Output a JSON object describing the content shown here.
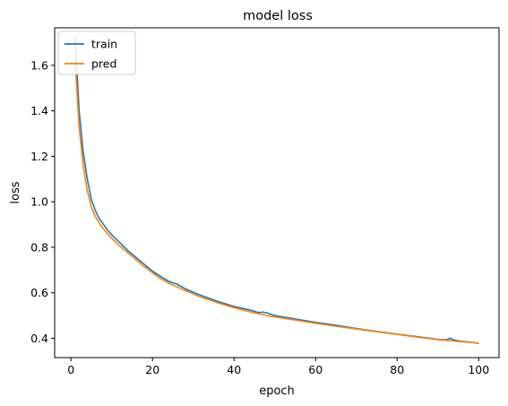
{
  "chart_data": {
    "type": "line",
    "title": "model loss",
    "xlabel": "epoch",
    "ylabel": "loss",
    "xlim": [
      -4,
      105
    ],
    "ylim": [
      0.315,
      1.765
    ],
    "xticks": [
      0,
      20,
      40,
      60,
      80,
      100
    ],
    "yticks": [
      0.4,
      0.6,
      0.8,
      1.0,
      1.2,
      1.4,
      1.6
    ],
    "ytick_labels": [
      "0.4",
      "0.6",
      "0.8",
      "1.0",
      "1.2",
      "1.4",
      "1.6"
    ],
    "grid": false,
    "legend": {
      "position": "upper left"
    },
    "series": [
      {
        "name": "train",
        "color": "#1f77b4",
        "points": [
          [
            1,
            1.73
          ],
          [
            2,
            1.4
          ],
          [
            3,
            1.22
          ],
          [
            4,
            1.1
          ],
          [
            5,
            1.01
          ],
          [
            6,
            0.96
          ],
          [
            7,
            0.925
          ],
          [
            8,
            0.9
          ],
          [
            9,
            0.875
          ],
          [
            10,
            0.855
          ],
          [
            12,
            0.82
          ],
          [
            14,
            0.785
          ],
          [
            16,
            0.755
          ],
          [
            18,
            0.725
          ],
          [
            20,
            0.695
          ],
          [
            22,
            0.672
          ],
          [
            24,
            0.65
          ],
          [
            26,
            0.638
          ],
          [
            28,
            0.618
          ],
          [
            30,
            0.602
          ],
          [
            32,
            0.588
          ],
          [
            34,
            0.575
          ],
          [
            36,
            0.562
          ],
          [
            38,
            0.551
          ],
          [
            40,
            0.54
          ],
          [
            42,
            0.532
          ],
          [
            44,
            0.524
          ],
          [
            46,
            0.513
          ],
          [
            47,
            0.515
          ],
          [
            48,
            0.512
          ],
          [
            50,
            0.5
          ],
          [
            55,
            0.485
          ],
          [
            60,
            0.47
          ],
          [
            65,
            0.457
          ],
          [
            70,
            0.443
          ],
          [
            75,
            0.43
          ],
          [
            80,
            0.418
          ],
          [
            85,
            0.407
          ],
          [
            90,
            0.395
          ],
          [
            92,
            0.393
          ],
          [
            93,
            0.4
          ],
          [
            94,
            0.392
          ],
          [
            96,
            0.386
          ],
          [
            98,
            0.383
          ],
          [
            100,
            0.377
          ]
        ]
      },
      {
        "name": "pred",
        "color": "#ff7f0e",
        "points": [
          [
            1,
            1.63
          ],
          [
            2,
            1.33
          ],
          [
            3,
            1.16
          ],
          [
            4,
            1.05
          ],
          [
            5,
            0.975
          ],
          [
            6,
            0.935
          ],
          [
            7,
            0.905
          ],
          [
            8,
            0.88
          ],
          [
            9,
            0.86
          ],
          [
            10,
            0.84
          ],
          [
            12,
            0.805
          ],
          [
            14,
            0.775
          ],
          [
            16,
            0.745
          ],
          [
            18,
            0.715
          ],
          [
            20,
            0.688
          ],
          [
            22,
            0.662
          ],
          [
            24,
            0.642
          ],
          [
            26,
            0.626
          ],
          [
            28,
            0.61
          ],
          [
            30,
            0.595
          ],
          [
            32,
            0.58
          ],
          [
            34,
            0.568
          ],
          [
            36,
            0.556
          ],
          [
            38,
            0.545
          ],
          [
            40,
            0.535
          ],
          [
            42,
            0.525
          ],
          [
            44,
            0.516
          ],
          [
            46,
            0.508
          ],
          [
            48,
            0.5
          ],
          [
            50,
            0.494
          ],
          [
            55,
            0.48
          ],
          [
            60,
            0.466
          ],
          [
            65,
            0.453
          ],
          [
            70,
            0.441
          ],
          [
            75,
            0.429
          ],
          [
            80,
            0.417
          ],
          [
            85,
            0.405
          ],
          [
            90,
            0.394
          ],
          [
            95,
            0.386
          ],
          [
            100,
            0.379
          ]
        ]
      }
    ]
  }
}
